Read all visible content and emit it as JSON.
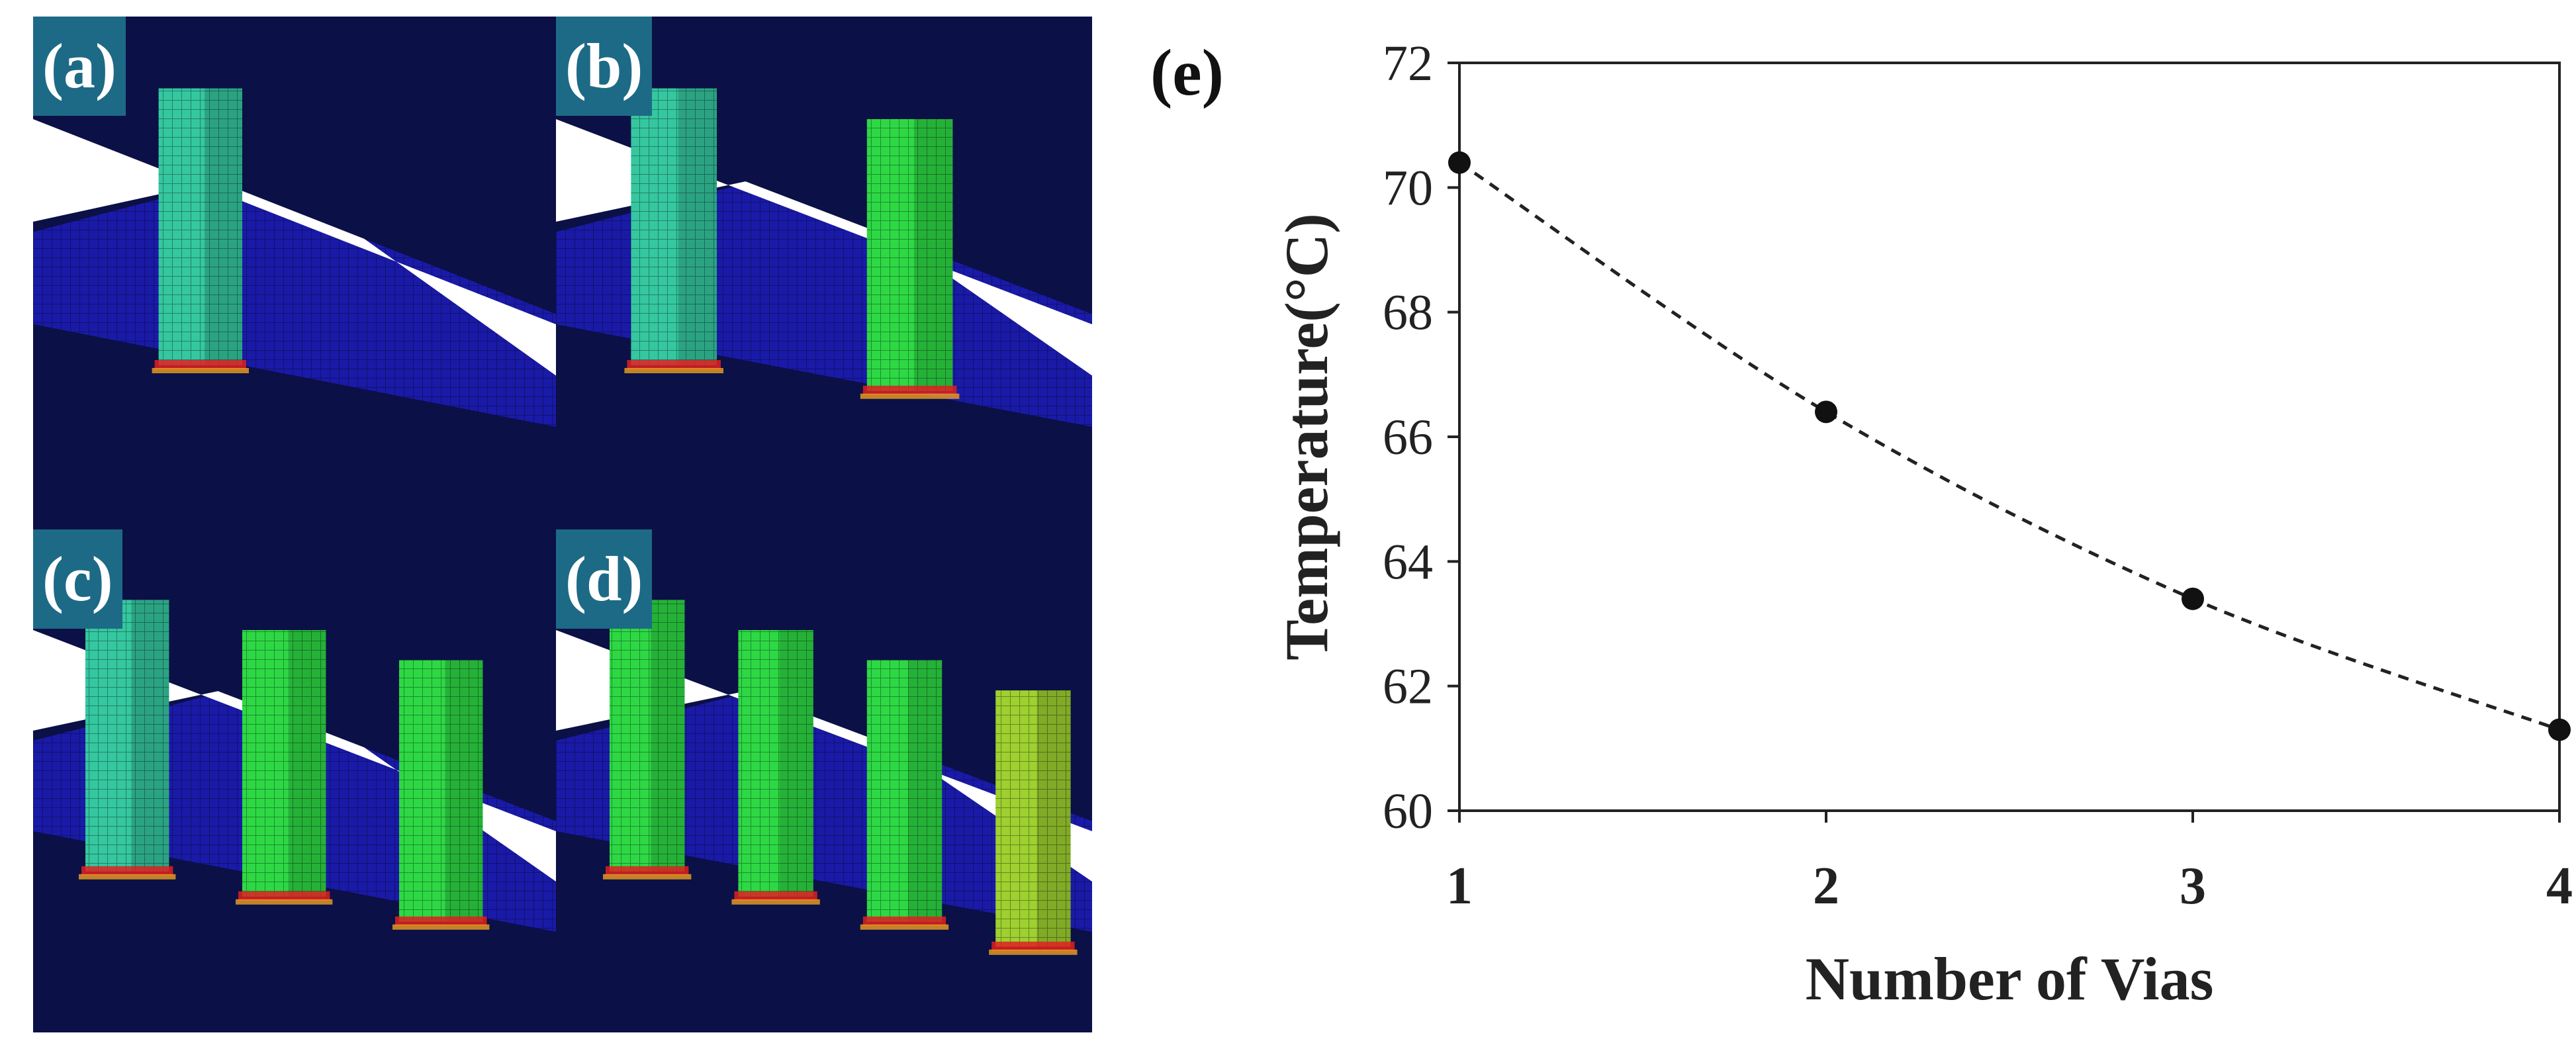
{
  "panels": [
    {
      "label": "(a)",
      "vias": 1
    },
    {
      "label": "(b)",
      "vias": 2
    },
    {
      "label": "(c)",
      "vias": 3
    },
    {
      "label": "(d)",
      "vias": 4
    }
  ],
  "colors": {
    "substrate": "#0b1046",
    "mesh_blue": "#1a1aa8",
    "via_cyan": "#35c7a0",
    "via_green": "#2ed845",
    "via_yellow_green": "#9ed030",
    "hot_red": "#e02020",
    "label_bg": "#1d6a86",
    "line": "#222222"
  },
  "chart_data": {
    "panel_label": "(e)",
    "type": "line",
    "x": [
      1,
      2,
      3,
      4
    ],
    "series": [
      {
        "values": [
          70.4,
          66.4,
          63.4,
          61.3
        ]
      }
    ],
    "xlabel": "Number of Vias",
    "ylabel": "Temperature(°C)",
    "xlim": [
      1,
      4
    ],
    "ylim": [
      60,
      72
    ],
    "xticks": [
      "1",
      "2",
      "3",
      "4"
    ],
    "yticks": [
      "60",
      "62",
      "64",
      "66",
      "68",
      "70",
      "72"
    ],
    "line_style": "dashed",
    "marker": "circle",
    "grid": false
  }
}
